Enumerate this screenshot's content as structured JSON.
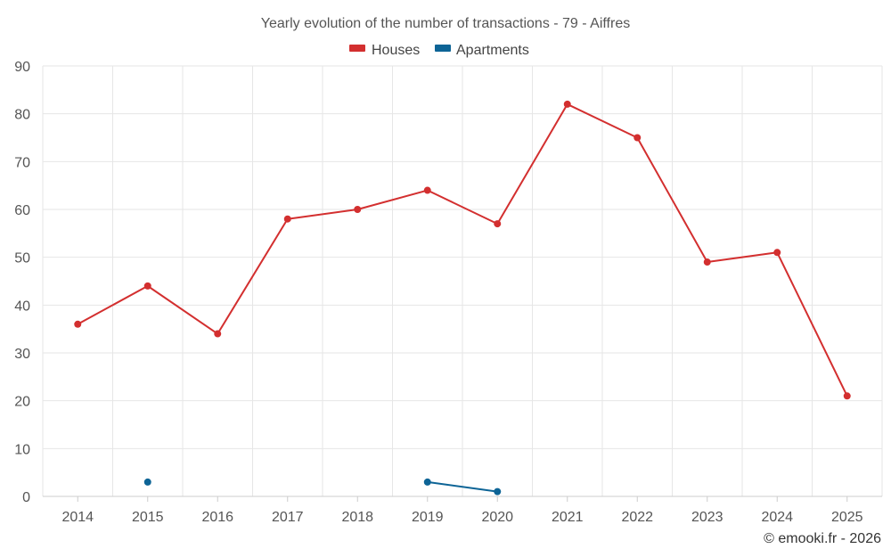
{
  "chart_data": {
    "type": "line",
    "title": "Yearly evolution of the number of transactions - 79 - Aiffres",
    "categories": [
      "2014",
      "2015",
      "2016",
      "2017",
      "2018",
      "2019",
      "2020",
      "2021",
      "2022",
      "2023",
      "2024",
      "2025"
    ],
    "ylim": [
      0,
      90
    ],
    "yticks": [
      0,
      10,
      20,
      30,
      40,
      50,
      60,
      70,
      80,
      90
    ],
    "grid": true,
    "legend_position": "top-center",
    "series": [
      {
        "name": "Houses",
        "color": "#d32f2f",
        "values": [
          36,
          44,
          34,
          58,
          60,
          64,
          57,
          82,
          75,
          49,
          51,
          21
        ]
      },
      {
        "name": "Apartments",
        "color": "#0d6496",
        "values": [
          null,
          3,
          null,
          null,
          null,
          3,
          1,
          null,
          null,
          null,
          null,
          null
        ]
      }
    ],
    "xlabel": "",
    "ylabel": ""
  },
  "credit": "© emooki.fr - 2026"
}
